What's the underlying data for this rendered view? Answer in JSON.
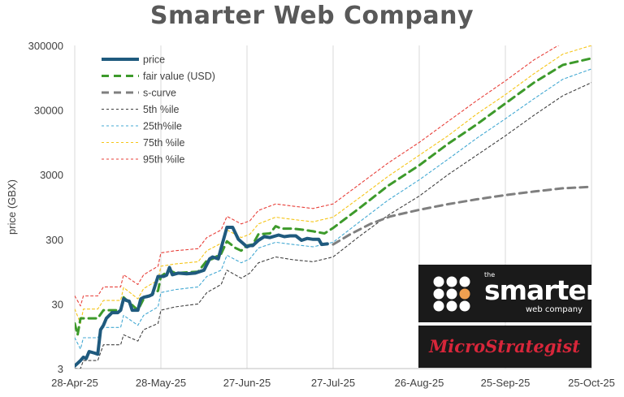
{
  "chart_data": {
    "type": "line",
    "title": "Smarter Web Company",
    "ylabel": "price (GBX)",
    "xlabel": "",
    "y_scale": "log",
    "ylim": [
      3,
      300000
    ],
    "y_ticks": [
      3,
      30,
      300,
      3000,
      30000,
      300000
    ],
    "y_tick_labels": [
      "3",
      "30",
      "300",
      "3000",
      "30000",
      "300000"
    ],
    "x_ticks": [
      "2025-04-28",
      "2025-05-28",
      "2025-06-27",
      "2025-07-27",
      "2025-08-26",
      "2025-09-25",
      "2025-10-25"
    ],
    "x_tick_labels": [
      "28-Apr-25",
      "28-May-25",
      "27-Jun-25",
      "27-Jul-25",
      "26-Aug-25",
      "25-Sep-25",
      "25-Oct-25"
    ],
    "xlim": [
      "2025-04-28",
      "2025-10-25"
    ],
    "grid": "vertical",
    "legend_position": "top-left",
    "series": [
      {
        "name": "price",
        "color": "#1f5a7e",
        "style": "solid-thick",
        "points": [
          [
            "2025-04-28",
            3.3
          ],
          [
            "2025-04-30",
            4
          ],
          [
            "2025-05-01",
            4.5
          ],
          [
            "2025-05-02",
            4.3
          ],
          [
            "2025-05-03",
            5.5
          ],
          [
            "2025-05-05",
            5.2
          ],
          [
            "2025-05-06",
            5
          ],
          [
            "2025-05-07",
            12
          ],
          [
            "2025-05-08",
            14
          ],
          [
            "2025-05-09",
            18
          ],
          [
            "2025-05-11",
            22
          ],
          [
            "2025-05-13",
            22
          ],
          [
            "2025-05-14",
            24
          ],
          [
            "2025-05-15",
            36
          ],
          [
            "2025-05-16",
            34
          ],
          [
            "2025-05-17",
            33
          ],
          [
            "2025-05-18",
            24
          ],
          [
            "2025-05-20",
            24
          ],
          [
            "2025-05-21",
            36
          ],
          [
            "2025-05-22",
            38
          ],
          [
            "2025-05-24",
            40
          ],
          [
            "2025-05-25",
            42
          ],
          [
            "2025-05-27",
            80
          ],
          [
            "2025-05-29",
            80
          ],
          [
            "2025-05-30",
            84
          ],
          [
            "2025-05-31",
            110
          ],
          [
            "2025-06-01",
            85
          ],
          [
            "2025-06-03",
            90
          ],
          [
            "2025-06-06",
            88
          ],
          [
            "2025-06-09",
            90
          ],
          [
            "2025-06-12",
            100
          ],
          [
            "2025-06-14",
            150
          ],
          [
            "2025-06-15",
            160
          ],
          [
            "2025-06-17",
            150
          ],
          [
            "2025-06-18",
            220
          ],
          [
            "2025-06-20",
            460
          ],
          [
            "2025-06-22",
            460
          ],
          [
            "2025-06-24",
            300
          ],
          [
            "2025-06-27",
            230
          ],
          [
            "2025-06-28",
            240
          ],
          [
            "2025-06-29",
            240
          ],
          [
            "2025-07-01",
            290
          ],
          [
            "2025-07-03",
            330
          ],
          [
            "2025-07-05",
            320
          ],
          [
            "2025-07-08",
            350
          ],
          [
            "2025-07-10",
            330
          ],
          [
            "2025-07-12",
            340
          ],
          [
            "2025-07-14",
            340
          ],
          [
            "2025-07-16",
            290
          ],
          [
            "2025-07-18",
            310
          ],
          [
            "2025-07-20",
            300
          ],
          [
            "2025-07-22",
            300
          ],
          [
            "2025-07-23",
            250
          ],
          [
            "2025-07-25",
            255
          ]
        ]
      },
      {
        "name": "fair value (USD)",
        "color": "#3d9a2b",
        "style": "dashed-thick",
        "points": [
          [
            "2025-04-28",
            15
          ],
          [
            "2025-04-29",
            10
          ],
          [
            "2025-04-30",
            18
          ],
          [
            "2025-05-06",
            18
          ],
          [
            "2025-05-08",
            24
          ],
          [
            "2025-05-14",
            24
          ],
          [
            "2025-05-15",
            38
          ],
          [
            "2025-05-20",
            24
          ],
          [
            "2025-05-22",
            36
          ],
          [
            "2025-05-27",
            48
          ],
          [
            "2025-05-28",
            80
          ],
          [
            "2025-05-31",
            100
          ],
          [
            "2025-06-02",
            90
          ],
          [
            "2025-06-10",
            95
          ],
          [
            "2025-06-13",
            140
          ],
          [
            "2025-06-15",
            150
          ],
          [
            "2025-06-18",
            180
          ],
          [
            "2025-06-20",
            280
          ],
          [
            "2025-06-23",
            220
          ],
          [
            "2025-06-25",
            200
          ],
          [
            "2025-06-27",
            240
          ],
          [
            "2025-06-29",
            250
          ],
          [
            "2025-07-01",
            360
          ],
          [
            "2025-07-05",
            370
          ],
          [
            "2025-07-07",
            480
          ],
          [
            "2025-07-09",
            440
          ],
          [
            "2025-07-13",
            440
          ],
          [
            "2025-07-17",
            420
          ],
          [
            "2025-07-20",
            400
          ],
          [
            "2025-07-24",
            370
          ],
          [
            "2025-07-27",
            450
          ],
          [
            "2025-08-05",
            900
          ],
          [
            "2025-08-15",
            2000
          ],
          [
            "2025-08-26",
            4200
          ],
          [
            "2025-09-05",
            9000
          ],
          [
            "2025-09-15",
            18000
          ],
          [
            "2025-09-25",
            38000
          ],
          [
            "2025-10-05",
            80000
          ],
          [
            "2025-10-15",
            150000
          ],
          [
            "2025-10-25",
            190000
          ]
        ]
      },
      {
        "name": "s-curve",
        "color": "#7f7f7f",
        "style": "dashed-thick",
        "points": [
          [
            "2025-07-27",
            250
          ],
          [
            "2025-08-02",
            360
          ],
          [
            "2025-08-09",
            520
          ],
          [
            "2025-08-16",
            680
          ],
          [
            "2025-08-26",
            860
          ],
          [
            "2025-09-05",
            1050
          ],
          [
            "2025-09-15",
            1250
          ],
          [
            "2025-09-25",
            1450
          ],
          [
            "2025-10-05",
            1650
          ],
          [
            "2025-10-15",
            1850
          ],
          [
            "2025-10-25",
            1950
          ]
        ]
      },
      {
        "name": "5th %ile",
        "color": "#404040",
        "style": "dotted",
        "points": [
          [
            "2025-04-28",
            3
          ],
          [
            "2025-04-30",
            3
          ],
          [
            "2025-05-01",
            4
          ],
          [
            "2025-05-06",
            4
          ],
          [
            "2025-05-08",
            7
          ],
          [
            "2025-05-14",
            7
          ],
          [
            "2025-05-15",
            10
          ],
          [
            "2025-05-20",
            8
          ],
          [
            "2025-05-22",
            12
          ],
          [
            "2025-05-27",
            15
          ],
          [
            "2025-05-28",
            24
          ],
          [
            "2025-06-02",
            27
          ],
          [
            "2025-06-10",
            30
          ],
          [
            "2025-06-13",
            45
          ],
          [
            "2025-06-18",
            60
          ],
          [
            "2025-06-20",
            100
          ],
          [
            "2025-06-25",
            75
          ],
          [
            "2025-06-28",
            90
          ],
          [
            "2025-07-01",
            130
          ],
          [
            "2025-07-07",
            160
          ],
          [
            "2025-07-13",
            145
          ],
          [
            "2025-07-20",
            135
          ],
          [
            "2025-07-27",
            160
          ],
          [
            "2025-08-05",
            330
          ],
          [
            "2025-08-15",
            700
          ],
          [
            "2025-08-26",
            1400
          ],
          [
            "2025-09-05",
            3000
          ],
          [
            "2025-09-15",
            6000
          ],
          [
            "2025-09-25",
            12000
          ],
          [
            "2025-10-05",
            25000
          ],
          [
            "2025-10-15",
            50000
          ],
          [
            "2025-10-25",
            80000
          ]
        ]
      },
      {
        "name": "25th%ile",
        "color": "#43a9d3",
        "style": "dotted",
        "points": [
          [
            "2025-04-28",
            9
          ],
          [
            "2025-04-30",
            6
          ],
          [
            "2025-05-01",
            9
          ],
          [
            "2025-05-06",
            9
          ],
          [
            "2025-05-08",
            13
          ],
          [
            "2025-05-14",
            13
          ],
          [
            "2025-05-15",
            20
          ],
          [
            "2025-05-20",
            14
          ],
          [
            "2025-05-22",
            20
          ],
          [
            "2025-05-27",
            27
          ],
          [
            "2025-05-28",
            45
          ],
          [
            "2025-06-02",
            50
          ],
          [
            "2025-06-10",
            55
          ],
          [
            "2025-06-13",
            80
          ],
          [
            "2025-06-18",
            100
          ],
          [
            "2025-06-20",
            170
          ],
          [
            "2025-06-25",
            130
          ],
          [
            "2025-06-28",
            150
          ],
          [
            "2025-07-01",
            220
          ],
          [
            "2025-07-07",
            270
          ],
          [
            "2025-07-13",
            250
          ],
          [
            "2025-07-20",
            230
          ],
          [
            "2025-07-27",
            270
          ],
          [
            "2025-08-05",
            550
          ],
          [
            "2025-08-15",
            1200
          ],
          [
            "2025-08-26",
            2500
          ],
          [
            "2025-09-05",
            5200
          ],
          [
            "2025-09-15",
            11000
          ],
          [
            "2025-09-25",
            22000
          ],
          [
            "2025-10-05",
            45000
          ],
          [
            "2025-10-15",
            90000
          ],
          [
            "2025-10-25",
            130000
          ]
        ]
      },
      {
        "name": "75th %ile",
        "color": "#f5c518",
        "style": "dotted",
        "points": [
          [
            "2025-04-28",
            25
          ],
          [
            "2025-04-30",
            15
          ],
          [
            "2025-05-01",
            25
          ],
          [
            "2025-05-06",
            25
          ],
          [
            "2025-05-08",
            34
          ],
          [
            "2025-05-14",
            34
          ],
          [
            "2025-05-15",
            54
          ],
          [
            "2025-05-20",
            36
          ],
          [
            "2025-05-22",
            52
          ],
          [
            "2025-05-27",
            70
          ],
          [
            "2025-05-28",
            115
          ],
          [
            "2025-06-02",
            125
          ],
          [
            "2025-06-10",
            135
          ],
          [
            "2025-06-13",
            200
          ],
          [
            "2025-06-18",
            260
          ],
          [
            "2025-06-20",
            420
          ],
          [
            "2025-06-25",
            320
          ],
          [
            "2025-06-28",
            360
          ],
          [
            "2025-07-01",
            520
          ],
          [
            "2025-07-07",
            660
          ],
          [
            "2025-07-13",
            610
          ],
          [
            "2025-07-20",
            560
          ],
          [
            "2025-07-27",
            660
          ],
          [
            "2025-08-05",
            1300
          ],
          [
            "2025-08-15",
            2800
          ],
          [
            "2025-08-26",
            6000
          ],
          [
            "2025-09-05",
            12000
          ],
          [
            "2025-09-15",
            26000
          ],
          [
            "2025-09-25",
            52000
          ],
          [
            "2025-10-05",
            110000
          ],
          [
            "2025-10-15",
            220000
          ],
          [
            "2025-10-25",
            300000
          ]
        ]
      },
      {
        "name": "95th %ile",
        "color": "#e8403a",
        "style": "dotted",
        "points": [
          [
            "2025-04-28",
            40
          ],
          [
            "2025-04-30",
            28
          ],
          [
            "2025-05-01",
            40
          ],
          [
            "2025-05-06",
            40
          ],
          [
            "2025-05-08",
            55
          ],
          [
            "2025-05-14",
            55
          ],
          [
            "2025-05-15",
            85
          ],
          [
            "2025-05-20",
            60
          ],
          [
            "2025-05-22",
            85
          ],
          [
            "2025-05-27",
            115
          ],
          [
            "2025-05-28",
            185
          ],
          [
            "2025-06-02",
            200
          ],
          [
            "2025-06-10",
            215
          ],
          [
            "2025-06-13",
            320
          ],
          [
            "2025-06-18",
            420
          ],
          [
            "2025-06-20",
            680
          ],
          [
            "2025-06-25",
            520
          ],
          [
            "2025-06-28",
            580
          ],
          [
            "2025-07-01",
            840
          ],
          [
            "2025-07-07",
            1060
          ],
          [
            "2025-07-13",
            980
          ],
          [
            "2025-07-20",
            900
          ],
          [
            "2025-07-27",
            1060
          ],
          [
            "2025-08-05",
            2100
          ],
          [
            "2025-08-15",
            4500
          ],
          [
            "2025-08-26",
            9500
          ],
          [
            "2025-09-05",
            20000
          ],
          [
            "2025-09-15",
            42000
          ],
          [
            "2025-09-25",
            85000
          ],
          [
            "2025-10-05",
            180000
          ],
          [
            "2025-10-15",
            330000
          ],
          [
            "2025-10-25",
            420000
          ]
        ]
      }
    ]
  },
  "logos": {
    "smarter": {
      "name": "the smarter web company",
      "bg": "#1a1a1a",
      "accent": "#f0a050"
    },
    "microstrategy": {
      "name": "MicroStrategist",
      "bg": "#1a1a1a",
      "color": "#d8263a"
    }
  }
}
